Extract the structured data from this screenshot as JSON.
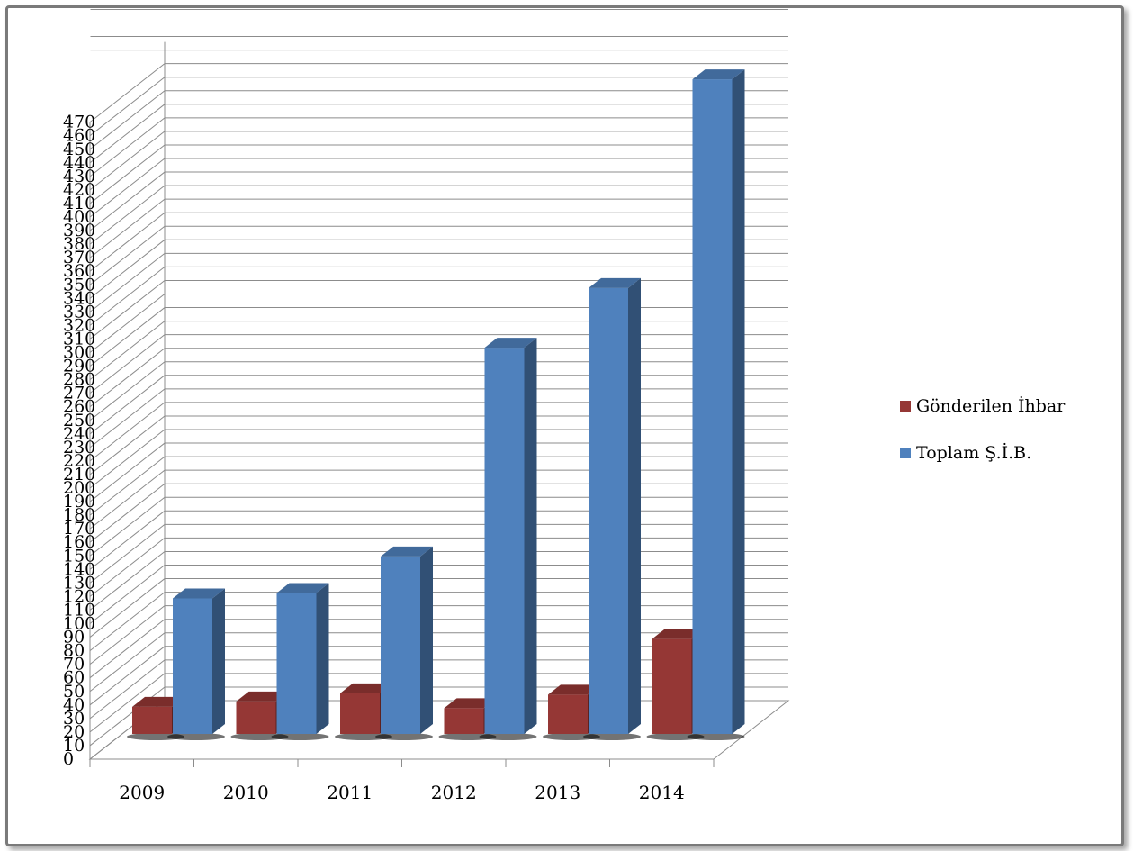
{
  "chart_data": {
    "type": "bar",
    "three_d": true,
    "categories": [
      "2009",
      "2010",
      "2011",
      "2012",
      "2013",
      "2014"
    ],
    "series": [
      {
        "name": "Gönderilen İhbar",
        "values": [
          20,
          24,
          30,
          19,
          29,
          70
        ],
        "color": "#953735"
      },
      {
        "name": "Toplam Ş.İ.B.",
        "values": [
          100,
          104,
          131,
          285,
          329,
          483
        ],
        "color": "#4f81bd"
      }
    ],
    "ylim": [
      0,
      470
    ],
    "yticks": [
      "0",
      "10",
      "20",
      "30",
      "40",
      "50",
      "60",
      "70",
      "80",
      "90",
      "100",
      "110",
      "120",
      "130",
      "140",
      "150",
      "160",
      "170",
      "180",
      "190",
      "200",
      "210",
      "220",
      "230",
      "240",
      "250",
      "260",
      "270",
      "280",
      "290",
      "300",
      "310",
      "320",
      "330",
      "340",
      "350",
      "360",
      "370",
      "380",
      "390",
      "400",
      "410",
      "420",
      "430",
      "440",
      "450",
      "460",
      "470"
    ],
    "legend_position": "right",
    "grid": true
  }
}
